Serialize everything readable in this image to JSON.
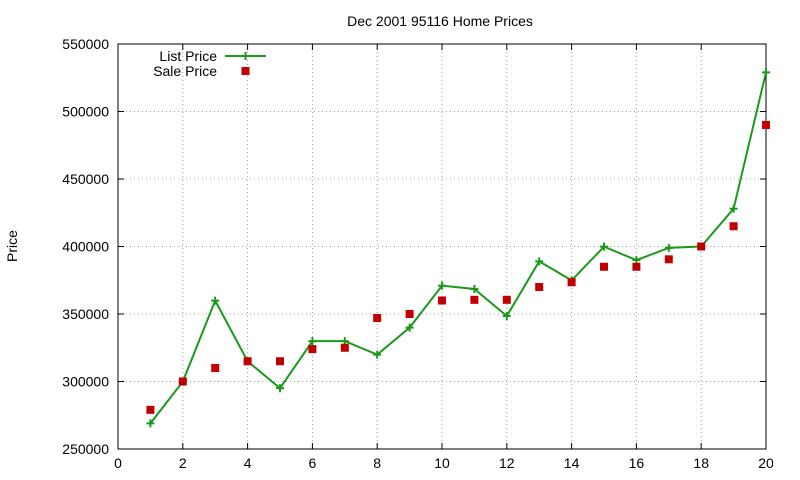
{
  "chart_data": {
    "type": "line",
    "title": "Dec 2001 95116 Home Prices",
    "xlabel": "",
    "ylabel": "Price",
    "xlim": [
      0,
      20
    ],
    "ylim": [
      250000,
      550000
    ],
    "x_ticks": [
      0,
      2,
      4,
      6,
      8,
      10,
      12,
      14,
      16,
      18,
      20
    ],
    "y_ticks": [
      250000,
      300000,
      350000,
      400000,
      450000,
      500000,
      550000
    ],
    "grid": true,
    "legend_position": "top-left",
    "series": [
      {
        "name": "List Price",
        "style": "line-points",
        "marker": "plus",
        "color": "#1a9a1a",
        "x": [
          1,
          2,
          3,
          4,
          5,
          6,
          7,
          8,
          9,
          10,
          11,
          12,
          13,
          14,
          15,
          16,
          17,
          18,
          19,
          20
        ],
        "y": [
          269000,
          299900,
          359900,
          315000,
          295000,
          329900,
          329900,
          319900,
          339900,
          371000,
          368500,
          348500,
          389000,
          374900,
          399900,
          389900,
          399000,
          400000,
          428000,
          529000
        ]
      },
      {
        "name": "Sale Price",
        "style": "points",
        "marker": "square",
        "color": "#c00000",
        "x": [
          1,
          2,
          3,
          4,
          5,
          6,
          7,
          8,
          9,
          10,
          11,
          12,
          13,
          14,
          15,
          16,
          17,
          18,
          19,
          20
        ],
        "y": [
          279000,
          300000,
          310000,
          315000,
          315000,
          324000,
          325000,
          347000,
          350000,
          360000,
          360500,
          360500,
          370000,
          373500,
          385000,
          385000,
          390500,
          400000,
          415000,
          490000
        ]
      }
    ]
  }
}
